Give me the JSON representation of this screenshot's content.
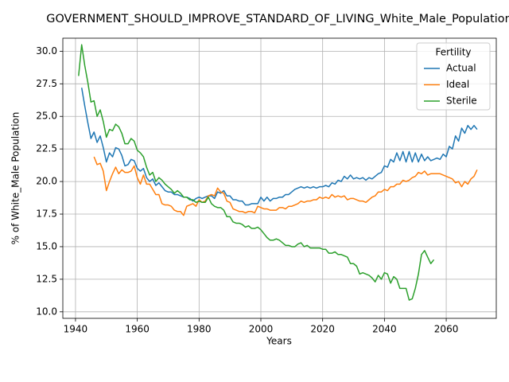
{
  "chart_data": {
    "type": "line",
    "title": "GOVERNMENT_SHOULD_IMPROVE_STANDARD_OF_LIVING_White_Male_Population",
    "x_label": "Years",
    "y_label": "% of White_Male Population",
    "legend_title": "Fertility",
    "legend_position": "upper right",
    "grid": true,
    "x": [
      1941,
      1942,
      1943,
      1944,
      1945,
      1946,
      1947,
      1948,
      1949,
      1950,
      1951,
      1952,
      1953,
      1954,
      1955,
      1956,
      1957,
      1958,
      1959,
      1960,
      1961,
      1962,
      1963,
      1964,
      1965,
      1966,
      1967,
      1968,
      1969,
      1970,
      1971,
      1972,
      1973,
      1974,
      1975,
      1976,
      1977,
      1978,
      1979,
      1980,
      1981,
      1982,
      1983,
      1984,
      1985,
      1986,
      1987,
      1988,
      1989,
      1990,
      1991,
      1992,
      1993,
      1994,
      1995,
      1996,
      1997,
      1998,
      1999,
      2000,
      2001,
      2002,
      2003,
      2004,
      2005,
      2006,
      2007,
      2008,
      2009,
      2010,
      2011,
      2012,
      2013,
      2014,
      2015,
      2016,
      2017,
      2018,
      2019,
      2020,
      2021,
      2022,
      2023,
      2024,
      2025,
      2026,
      2027,
      2028,
      2029,
      2030,
      2031,
      2032,
      2033,
      2034,
      2035,
      2036,
      2037,
      2038,
      2039,
      2040,
      2041,
      2042,
      2043,
      2044,
      2045,
      2046,
      2047,
      2048,
      2049,
      2050,
      2051,
      2052,
      2053,
      2054,
      2055,
      2056,
      2057,
      2058,
      2059,
      2060,
      2061,
      2062,
      2063,
      2064,
      2065,
      2066,
      2067,
      2068,
      2069,
      2070
    ],
    "series": [
      {
        "name": "Actual",
        "color": "#1f77b4",
        "values": [
          null,
          27.2,
          25.8,
          24.5,
          23.3,
          23.8,
          23.0,
          23.5,
          22.6,
          21.5,
          22.2,
          21.9,
          22.6,
          22.5,
          22.0,
          21.2,
          21.3,
          21.7,
          21.6,
          21.0,
          20.8,
          21.0,
          20.3,
          20.0,
          20.2,
          19.7,
          19.9,
          19.6,
          19.3,
          19.2,
          19.2,
          19.0,
          19.0,
          18.9,
          18.8,
          18.8,
          18.7,
          18.5,
          18.7,
          18.8,
          18.7,
          18.8,
          18.9,
          18.9,
          18.7,
          19.2,
          19.1,
          19.3,
          18.9,
          18.9,
          18.6,
          18.6,
          18.5,
          18.5,
          18.2,
          18.2,
          18.3,
          18.3,
          18.3,
          18.8,
          18.5,
          18.8,
          18.5,
          18.7,
          18.7,
          18.8,
          18.8,
          19.0,
          19.0,
          19.2,
          19.4,
          19.5,
          19.6,
          19.5,
          19.6,
          19.5,
          19.6,
          19.5,
          19.6,
          19.6,
          19.7,
          19.6,
          19.9,
          19.8,
          20.1,
          20.0,
          20.4,
          20.2,
          20.5,
          20.2,
          20.3,
          20.2,
          20.3,
          20.1,
          20.3,
          20.2,
          20.4,
          20.6,
          20.7,
          21.2,
          21.1,
          21.7,
          21.5,
          22.2,
          21.6,
          22.3,
          21.5,
          22.3,
          21.5,
          22.2,
          21.5,
          22.1,
          21.6,
          21.9,
          21.6,
          21.7,
          21.8,
          21.7,
          22.1,
          21.9,
          22.7,
          22.5,
          23.5,
          23.1,
          24.1,
          23.7,
          24.3,
          24.0,
          24.3,
          24.0
        ]
      },
      {
        "name": "Ideal",
        "color": "#ff7f0e",
        "values": [
          null,
          null,
          null,
          null,
          null,
          21.9,
          21.3,
          21.4,
          20.8,
          19.3,
          20.0,
          20.6,
          21.1,
          20.6,
          20.9,
          20.7,
          20.7,
          20.8,
          21.2,
          20.3,
          19.8,
          20.5,
          19.8,
          19.8,
          19.4,
          19.0,
          19.0,
          18.3,
          18.2,
          18.2,
          18.1,
          17.8,
          17.7,
          17.7,
          17.4,
          18.1,
          18.2,
          18.3,
          18.1,
          18.6,
          18.4,
          18.5,
          18.9,
          19.0,
          18.9,
          19.5,
          19.2,
          19.1,
          18.5,
          18.4,
          17.9,
          17.8,
          17.7,
          17.7,
          17.6,
          17.7,
          17.7,
          17.6,
          18.1,
          18.0,
          17.9,
          17.9,
          17.8,
          17.8,
          17.8,
          18.0,
          18.0,
          17.9,
          18.1,
          18.1,
          18.2,
          18.3,
          18.5,
          18.4,
          18.5,
          18.5,
          18.6,
          18.6,
          18.8,
          18.7,
          18.8,
          18.7,
          19.0,
          18.8,
          18.9,
          18.8,
          18.9,
          18.6,
          18.7,
          18.7,
          18.6,
          18.5,
          18.5,
          18.4,
          18.6,
          18.8,
          18.9,
          19.2,
          19.2,
          19.4,
          19.3,
          19.6,
          19.6,
          19.8,
          19.8,
          20.1,
          20.0,
          20.1,
          20.3,
          20.4,
          20.7,
          20.6,
          20.8,
          20.5,
          20.6,
          20.6,
          20.6,
          20.6,
          20.5,
          20.4,
          20.3,
          20.2,
          19.9,
          20.0,
          19.6,
          20.0,
          19.8,
          20.2,
          20.4,
          20.9
        ]
      },
      {
        "name": "Sterile",
        "color": "#2ca02c",
        "values": [
          28.1,
          30.5,
          28.9,
          27.6,
          26.1,
          26.2,
          25.0,
          25.5,
          24.6,
          23.4,
          24.0,
          23.9,
          24.4,
          24.2,
          23.7,
          22.9,
          22.9,
          23.3,
          23.1,
          22.4,
          22.2,
          21.9,
          21.1,
          20.5,
          20.7,
          20.0,
          20.3,
          20.1,
          19.8,
          19.6,
          19.4,
          19.1,
          19.3,
          19.1,
          18.8,
          18.8,
          18.6,
          18.6,
          18.4,
          18.5,
          18.4,
          18.4,
          18.8,
          18.3,
          18.1,
          18.0,
          18.0,
          17.8,
          17.3,
          17.3,
          16.9,
          16.8,
          16.8,
          16.7,
          16.5,
          16.6,
          16.4,
          16.4,
          16.5,
          16.3,
          16.0,
          15.7,
          15.5,
          15.5,
          15.6,
          15.5,
          15.3,
          15.1,
          15.1,
          15.0,
          15.0,
          15.2,
          15.3,
          15.0,
          15.1,
          14.9,
          14.9,
          14.9,
          14.9,
          14.8,
          14.8,
          14.5,
          14.5,
          14.6,
          14.4,
          14.4,
          14.3,
          14.2,
          13.7,
          13.7,
          13.5,
          12.9,
          13.0,
          12.9,
          12.8,
          12.6,
          12.3,
          12.8,
          12.5,
          13.0,
          12.9,
          12.2,
          12.7,
          12.5,
          11.8,
          11.8,
          11.8,
          10.9,
          11.0,
          11.8,
          12.9,
          14.4,
          14.7,
          14.2,
          13.7,
          14.0,
          null,
          null,
          null,
          null,
          null,
          null,
          null,
          null,
          null,
          null,
          null,
          null,
          null,
          null
        ]
      }
    ],
    "xlim": [
      1935.9,
      2076.2
    ],
    "xticks": [
      1940,
      1960,
      1980,
      2000,
      2020,
      2040,
      2060
    ],
    "ylim": [
      9.5,
      31.0
    ],
    "yticks": [
      {
        "value": 10,
        "label": "10.0"
      },
      12.5,
      {
        "value": 15,
        "label": "15.0"
      },
      17.5,
      {
        "value": 20,
        "label": "20.0"
      },
      22.5,
      {
        "value": 25,
        "label": "25.0"
      },
      27.5,
      {
        "value": 30,
        "label": "30.0"
      }
    ]
  }
}
